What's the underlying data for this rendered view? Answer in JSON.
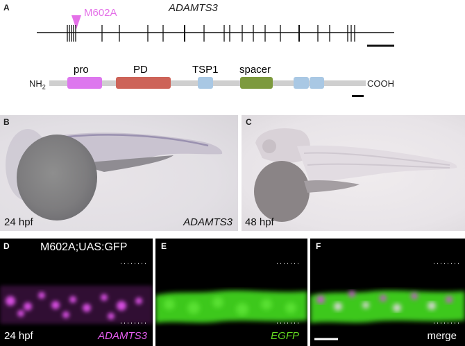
{
  "panel_a": {
    "letter": "A",
    "gene_name": "ADAMTS3",
    "mutation": "M602A",
    "domain_labels": [
      "pro",
      "PD",
      "TSP1",
      "spacer"
    ],
    "n_terminus": "NH",
    "n_terminus_sub": "2",
    "c_terminus": "COOH",
    "colors": {
      "pro": "#dd77ee",
      "PD": "#cd6358",
      "TSP1": "#a9c8e4",
      "spacer": "#7d9a3e",
      "arrow": "#e470e8",
      "backbone": "#cfcfcf"
    }
  },
  "panel_b": {
    "letter": "B",
    "stage": "24 hpf",
    "probe": "ADAMTS3"
  },
  "panel_c": {
    "letter": "C",
    "stage": "48 hpf"
  },
  "panel_d": {
    "letter": "D",
    "construct": "M602A;UAS:GFP",
    "stage": "24 hpf",
    "channel": "ADAMTS3",
    "channel_color": "#e55ef0"
  },
  "panel_e": {
    "letter": "E",
    "channel": "EGFP",
    "channel_color": "#66dd22"
  },
  "panel_f": {
    "letter": "F",
    "channel": "merge"
  }
}
